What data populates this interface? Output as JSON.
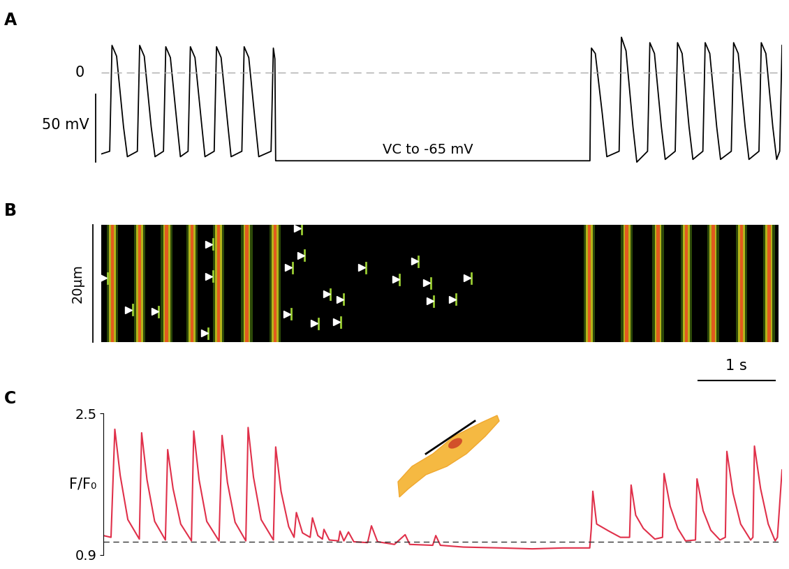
{
  "chart_data": [
    {
      "type": "line",
      "title": "A",
      "color": "#000000",
      "tick_labels": false,
      "xlim": [
        0,
        8.86
      ],
      "ylim": [
        -70,
        38
      ],
      "reference_line": {
        "value": 0,
        "label": "0"
      },
      "scale_bar": {
        "value": 50,
        "label": "50 mV"
      },
      "annotations": [
        "VC to -65 mV"
      ],
      "x": [
        0.0,
        0.11,
        0.14,
        0.2,
        0.29,
        0.34,
        0.47,
        0.5,
        0.56,
        0.65,
        0.7,
        0.81,
        0.84,
        0.9,
        0.99,
        1.03,
        1.13,
        1.16,
        1.22,
        1.31,
        1.35,
        1.47,
        1.5,
        1.56,
        1.65,
        1.69,
        1.83,
        1.86,
        1.92,
        2.01,
        2.05,
        2.21,
        2.24,
        2.26,
        2.27,
        6.36,
        6.37,
        6.38,
        6.43,
        6.52,
        6.58,
        6.74,
        6.77,
        6.83,
        6.92,
        6.97,
        7.11,
        7.14,
        7.2,
        7.29,
        7.34,
        7.47,
        7.5,
        7.56,
        7.65,
        7.7,
        7.83,
        7.86,
        7.92,
        8.01,
        8.06,
        8.2,
        8.23,
        8.29,
        8.38,
        8.43,
        8.56,
        8.59,
        8.65,
        8.74,
        8.79,
        8.83,
        8.86
      ],
      "values": [
        -60,
        -58,
        20,
        12,
        -40,
        -62,
        -58,
        20,
        12,
        -40,
        -62,
        -58,
        19,
        11,
        -40,
        -62,
        -58,
        19,
        11,
        -40,
        -62,
        -58,
        19,
        11,
        -40,
        -62,
        -58,
        19,
        11,
        -40,
        -62,
        -58,
        18,
        10,
        -65,
        -65,
        -10,
        18,
        14,
        -30,
        -62,
        -58,
        26,
        16,
        -40,
        -66,
        -58,
        22,
        14,
        -40,
        -64,
        -58,
        22,
        14,
        -40,
        -64,
        -58,
        22,
        14,
        -40,
        -64,
        -58,
        22,
        14,
        -40,
        -64,
        -58,
        22,
        14,
        -40,
        -64,
        -58,
        20
      ]
    },
    {
      "type": "linescan",
      "title": "B",
      "tick_labels": false,
      "xlim": [
        0,
        8.86
      ],
      "ylim": [
        0,
        20
      ],
      "transients": [
        0.14,
        0.5,
        0.85,
        1.18,
        1.53,
        1.9,
        2.27,
        6.38,
        6.87,
        7.28,
        7.65,
        8.0,
        8.37,
        8.73
      ],
      "sparks": {
        "x": [
          0.03,
          0.36,
          0.7,
          1.41,
          1.41,
          1.35,
          2.45,
          2.61,
          2.57,
          2.43,
          2.79,
          2.95,
          3.08,
          3.12,
          3.41,
          3.85,
          4.1,
          4.26,
          4.3,
          4.59,
          4.79
        ],
        "y": [
          10.9,
          5.5,
          5.2,
          16.7,
          11.2,
          1.5,
          12.7,
          14.8,
          19.4,
          4.8,
          3.2,
          8.2,
          3.4,
          7.3,
          12.7,
          10.7,
          13.8,
          10.1,
          7.0,
          7.3,
          10.9
        ]
      },
      "scale_bars": [
        {
          "value": 20,
          "label": "20µm"
        },
        {
          "value": 1,
          "label": "1 s"
        }
      ]
    },
    {
      "type": "line",
      "title": "C",
      "color": "#e0304a",
      "tick_labels": "y",
      "y_label": "F/F₀",
      "xlim": [
        0,
        8.86
      ],
      "ylim": [
        0.9,
        2.5
      ],
      "yticks": [
        0.9,
        2.5
      ],
      "reference_line": {
        "value": 1.05
      },
      "x": [
        0.0,
        0.1,
        0.15,
        0.22,
        0.32,
        0.47,
        0.5,
        0.57,
        0.67,
        0.81,
        0.84,
        0.91,
        1.01,
        1.15,
        1.18,
        1.25,
        1.35,
        1.51,
        1.55,
        1.62,
        1.72,
        1.86,
        1.89,
        1.96,
        2.06,
        2.22,
        2.25,
        2.32,
        2.42,
        2.49,
        2.52,
        2.6,
        2.7,
        2.73,
        2.8,
        2.86,
        2.88,
        2.95,
        3.07,
        3.09,
        3.14,
        3.2,
        3.27,
        3.45,
        3.5,
        3.58,
        3.8,
        3.94,
        4.0,
        4.3,
        4.34,
        4.4,
        4.7,
        5.2,
        5.6,
        6.0,
        6.35,
        6.37,
        6.39,
        6.44,
        6.6,
        6.75,
        6.87,
        6.89,
        6.95,
        7.05,
        7.2,
        7.3,
        7.32,
        7.4,
        7.5,
        7.6,
        7.73,
        7.75,
        7.83,
        7.93,
        8.05,
        8.12,
        8.14,
        8.22,
        8.32,
        8.45,
        8.48,
        8.5,
        8.58,
        8.68,
        8.77,
        8.8,
        8.86
      ],
      "values": [
        1.12,
        1.1,
        2.32,
        1.8,
        1.3,
        1.08,
        2.28,
        1.75,
        1.28,
        1.07,
        2.09,
        1.65,
        1.25,
        1.06,
        2.3,
        1.75,
        1.28,
        1.06,
        2.25,
        1.72,
        1.27,
        1.06,
        2.34,
        1.78,
        1.3,
        1.07,
        2.12,
        1.62,
        1.22,
        1.1,
        1.38,
        1.15,
        1.1,
        1.32,
        1.12,
        1.08,
        1.19,
        1.07,
        1.06,
        1.17,
        1.06,
        1.16,
        1.05,
        1.04,
        1.23,
        1.05,
        1.02,
        1.13,
        1.02,
        1.01,
        1.12,
        1.01,
        0.99,
        0.98,
        0.97,
        0.98,
        0.98,
        1.2,
        1.62,
        1.25,
        1.17,
        1.1,
        1.1,
        1.69,
        1.35,
        1.2,
        1.08,
        1.1,
        1.82,
        1.45,
        1.2,
        1.06,
        1.07,
        1.76,
        1.4,
        1.18,
        1.07,
        1.1,
        2.07,
        1.6,
        1.25,
        1.07,
        1.1,
        2.13,
        1.65,
        1.25,
        1.06,
        1.1,
        1.86
      ]
    }
  ]
}
